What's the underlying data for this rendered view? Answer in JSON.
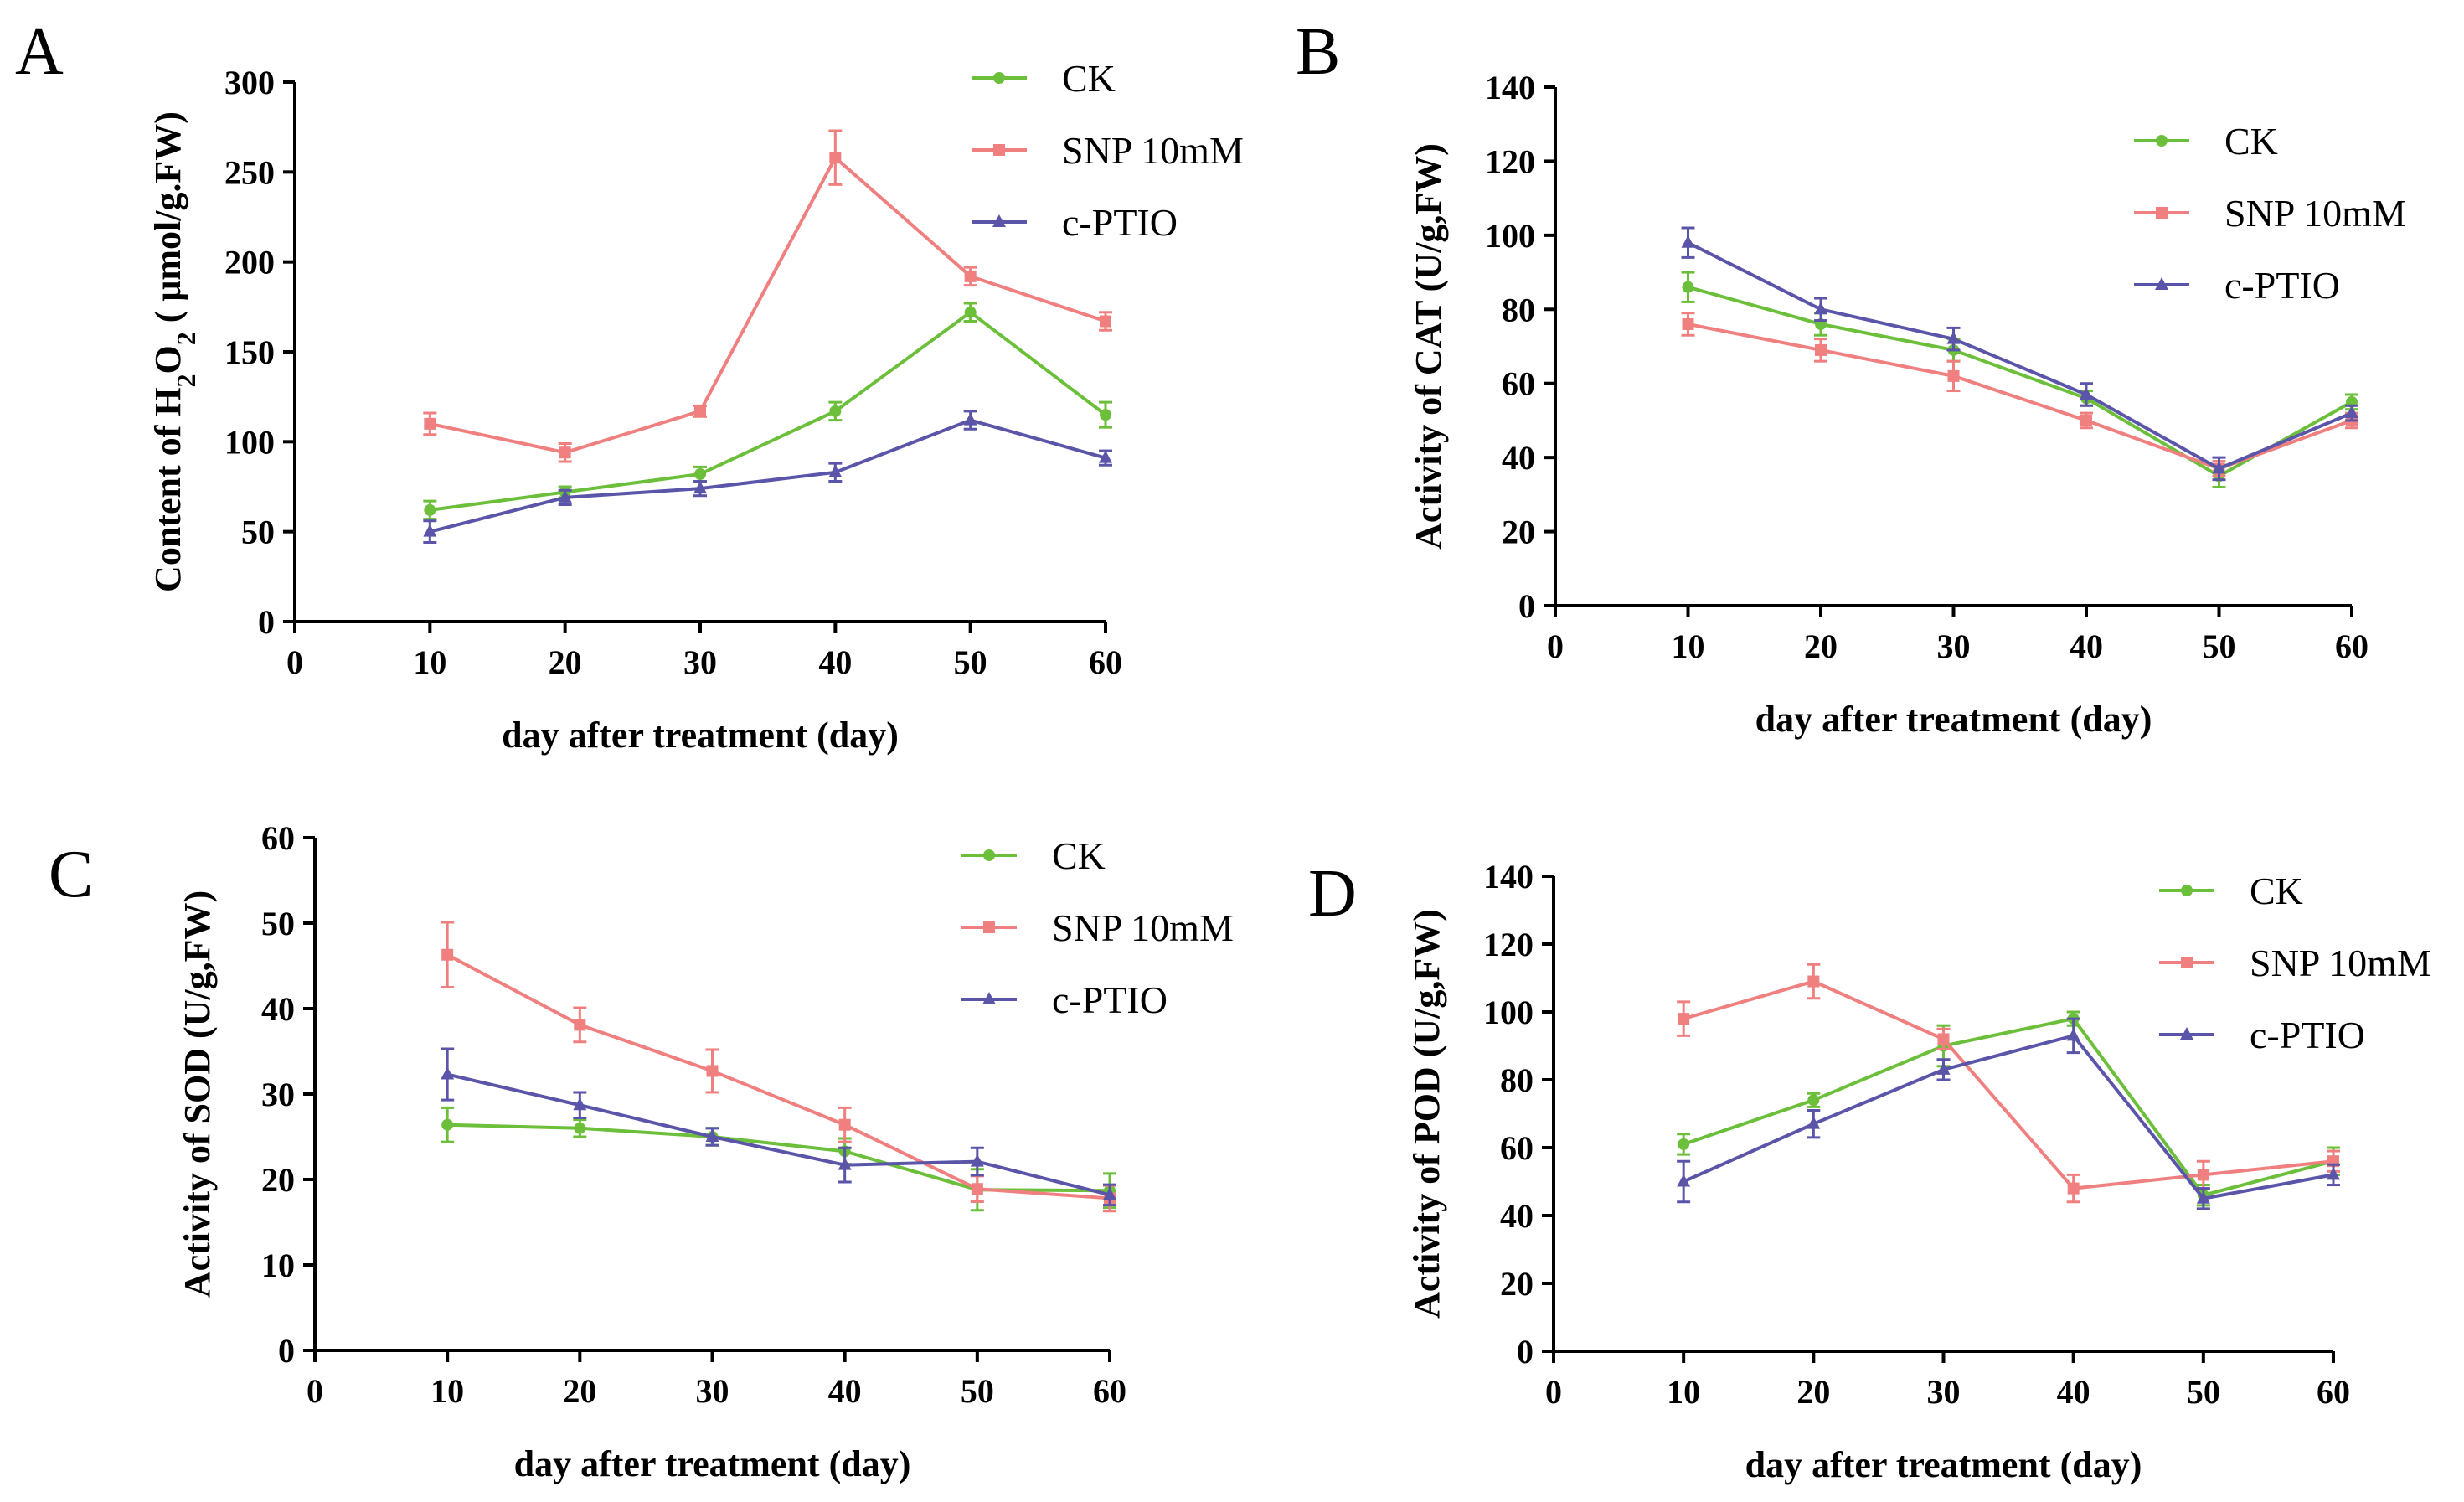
{
  "colors": {
    "CK": "#6cbf3a",
    "SNP 10mM": "#f07f7f",
    "c-PTIO": "#5a55a8"
  },
  "chart_data": [
    {
      "panel": "A",
      "type": "line",
      "ylabel": "Content of H2O2 ( μmol/g.FW)",
      "ylabel_parts": [
        "Content of H",
        "2",
        "O",
        "2",
        " ( μmol/g.FW)"
      ],
      "xlabel": "day after treatment (day)",
      "xlim": [
        0,
        60
      ],
      "ylim": [
        0,
        300
      ],
      "xticks": [
        0,
        10,
        20,
        30,
        40,
        50,
        60
      ],
      "yticks": [
        0,
        50,
        100,
        150,
        200,
        250,
        300
      ],
      "legend_position": "top-right",
      "x": [
        10,
        20,
        30,
        40,
        50,
        60
      ],
      "series": [
        {
          "name": "CK",
          "values": [
            62,
            72,
            82,
            117,
            172,
            115
          ],
          "errors": [
            5,
            3,
            4,
            5,
            5,
            7
          ]
        },
        {
          "name": "SNP 10mM",
          "values": [
            110,
            94,
            117,
            258,
            192,
            167
          ],
          "errors": [
            6,
            5,
            3,
            15,
            5,
            5
          ]
        },
        {
          "name": "c-PTIO",
          "values": [
            50,
            69,
            74,
            83,
            112,
            91
          ],
          "errors": [
            6,
            4,
            4,
            5,
            5,
            4
          ]
        }
      ]
    },
    {
      "panel": "B",
      "type": "line",
      "ylabel": "Activity of CAT (U/g,FW)",
      "xlabel": "day after treatment (day)",
      "xlim": [
        0,
        60
      ],
      "ylim": [
        0,
        140
      ],
      "xticks": [
        0,
        10,
        20,
        30,
        40,
        50,
        60
      ],
      "yticks": [
        0,
        20,
        40,
        60,
        80,
        100,
        120,
        140
      ],
      "legend_position": "top-right",
      "x": [
        10,
        20,
        30,
        40,
        50,
        60
      ],
      "series": [
        {
          "name": "CK",
          "values": [
            86,
            76,
            69,
            56,
            35,
            55
          ],
          "errors": [
            4,
            3,
            3,
            2,
            3,
            2
          ]
        },
        {
          "name": "SNP 10mM",
          "values": [
            76,
            69,
            62,
            50,
            37,
            50
          ],
          "errors": [
            3,
            3,
            4,
            2,
            2,
            2
          ]
        },
        {
          "name": "c-PTIO",
          "values": [
            98,
            80,
            72,
            57,
            37,
            52
          ],
          "errors": [
            4,
            3,
            3,
            3,
            3,
            2
          ]
        }
      ]
    },
    {
      "panel": "C",
      "type": "line",
      "ylabel": "Activity of SOD (U/g,FW)",
      "xlabel": "day after treatment (day)",
      "xlim": [
        0,
        60
      ],
      "ylim": [
        0,
        60
      ],
      "xticks": [
        0,
        10,
        20,
        30,
        40,
        50,
        60
      ],
      "yticks": [
        0,
        10,
        20,
        30,
        40,
        50,
        60
      ],
      "legend_position": "top-right",
      "x": [
        10,
        20,
        30,
        40,
        50,
        60
      ],
      "series": [
        {
          "name": "CK",
          "values": [
            26.4,
            26.0,
            25.0,
            23.3,
            18.8,
            18.7
          ],
          "errors": [
            2,
            1,
            1,
            1.5,
            2.4,
            2
          ]
        },
        {
          "name": "SNP 10mM",
          "values": [
            46.3,
            38.1,
            32.7,
            26.4,
            18.9,
            17.8
          ],
          "errors": [
            3.8,
            2,
            2.5,
            2,
            1.5,
            1.5
          ]
        },
        {
          "name": "c-PTIO",
          "values": [
            32.3,
            28.7,
            25.0,
            21.7,
            22.1,
            18.2
          ],
          "errors": [
            3,
            1.5,
            1,
            2,
            1.6,
            1.2
          ]
        }
      ]
    },
    {
      "panel": "D",
      "type": "line",
      "ylabel": "Activity of POD (U/g,FW)",
      "xlabel": "day after treatment (day)",
      "xlim": [
        0,
        60
      ],
      "ylim": [
        0,
        140
      ],
      "xticks": [
        0,
        10,
        20,
        30,
        40,
        50,
        60
      ],
      "yticks": [
        0,
        20,
        40,
        60,
        80,
        100,
        120,
        140
      ],
      "legend_position": "top-right",
      "x": [
        10,
        20,
        30,
        40,
        50,
        60
      ],
      "series": [
        {
          "name": "CK",
          "values": [
            61,
            74,
            90,
            98,
            46,
            56
          ],
          "errors": [
            3,
            2,
            6,
            2,
            3,
            4
          ]
        },
        {
          "name": "SNP 10mM",
          "values": [
            98,
            109,
            92,
            48,
            52,
            56
          ],
          "errors": [
            5,
            5,
            3,
            4,
            4,
            3
          ]
        },
        {
          "name": "c-PTIO",
          "values": [
            50,
            67,
            83,
            93,
            45,
            52
          ],
          "errors": [
            6,
            4,
            3,
            5,
            3,
            3
          ]
        }
      ]
    }
  ]
}
